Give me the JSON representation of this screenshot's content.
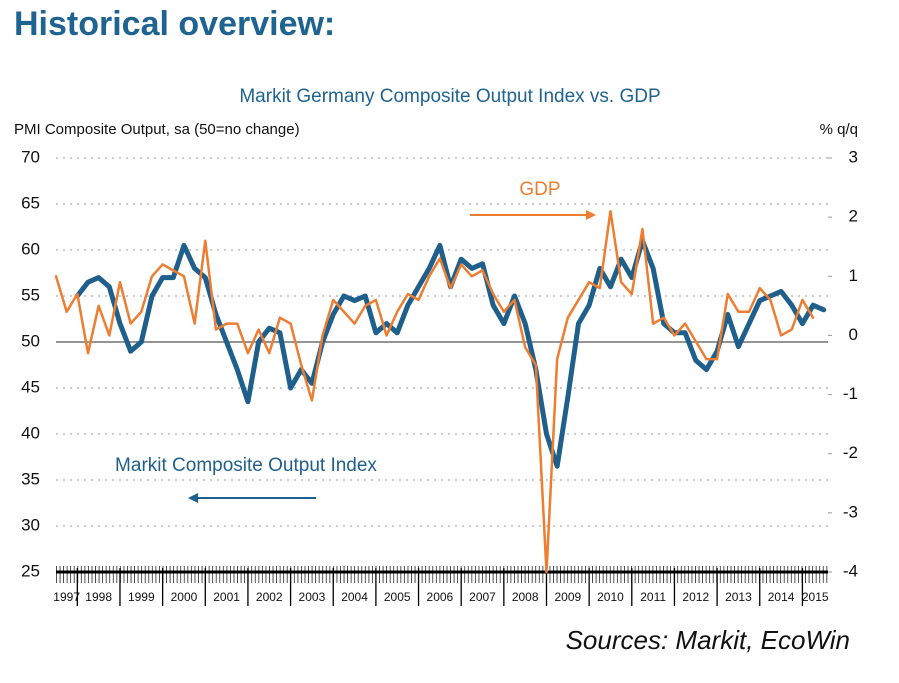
{
  "page_title": "Historical overview:",
  "chart_data": {
    "type": "line",
    "title": "Markit Germany Composite Output Index vs. GDP",
    "y_label": "PMI Composite Output, sa (50=no change)",
    "y2_label": "% q/q",
    "annotations": [
      "GDP",
      "Markit Composite Output Index"
    ],
    "source": "Sources: Markit, EcoWin",
    "xlim": [
      1997.5,
      2015.6
    ],
    "xticks": [
      1997,
      1998,
      1999,
      2000,
      2001,
      2002,
      2003,
      2004,
      2005,
      2006,
      2007,
      2008,
      2009,
      2010,
      2011,
      2012,
      2013,
      2014,
      2015
    ],
    "ylim": [
      25,
      70
    ],
    "yticks": [
      25,
      30,
      35,
      40,
      45,
      50,
      55,
      60,
      65,
      70
    ],
    "y2lim": [
      -4,
      3
    ],
    "y2ticks": [
      -4,
      -3,
      -2,
      -1,
      0,
      1,
      2,
      3
    ],
    "grid": true,
    "reference_line": 50,
    "series": [
      {
        "name": "Markit Composite Output Index",
        "color": "#1f5f8b",
        "width": 5,
        "x": [
          1998,
          1998.25,
          1998.5,
          1998.75,
          1999,
          1999.25,
          1999.5,
          1999.75,
          2000,
          2000.25,
          2000.5,
          2000.75,
          2001,
          2001.25,
          2001.5,
          2001.75,
          2002,
          2002.25,
          2002.5,
          2002.75,
          2003,
          2003.25,
          2003.5,
          2003.75,
          2004,
          2004.25,
          2004.5,
          2004.75,
          2005,
          2005.25,
          2005.5,
          2005.75,
          2006,
          2006.25,
          2006.5,
          2006.75,
          2007,
          2007.25,
          2007.5,
          2007.75,
          2008,
          2008.25,
          2008.5,
          2008.75,
          2009,
          2009.25,
          2009.5,
          2009.75,
          2010,
          2010.25,
          2010.5,
          2010.75,
          2011,
          2011.25,
          2011.5,
          2011.75,
          2012,
          2012.25,
          2012.5,
          2012.75,
          2013,
          2013.25,
          2013.5,
          2013.75,
          2014,
          2014.25,
          2014.5,
          2014.75,
          2015,
          2015.25,
          2015.5
        ],
        "values": [
          55,
          56.5,
          57,
          56,
          52,
          49,
          50,
          55,
          57,
          57,
          60.5,
          58,
          57,
          53,
          50,
          47,
          43.5,
          50,
          51.5,
          51,
          45,
          47,
          45.5,
          50,
          53,
          55,
          54.5,
          55,
          51,
          52,
          51,
          54,
          56,
          58,
          60.5,
          56,
          59,
          58,
          58.5,
          54,
          52,
          55,
          52,
          47,
          40,
          36.5,
          44,
          52,
          54,
          58,
          56,
          59,
          57,
          61,
          58,
          52,
          51,
          51,
          48,
          47,
          49,
          53,
          49.5,
          52,
          54.5,
          55,
          55.5,
          54,
          52,
          54,
          53.5
        ]
      },
      {
        "name": "GDP",
        "color": "#ed7d31",
        "width": 2.5,
        "axis": "y2",
        "x": [
          1997.5,
          1997.75,
          1998,
          1998.25,
          1998.5,
          1998.75,
          1999,
          1999.25,
          1999.5,
          1999.75,
          2000,
          2000.25,
          2000.5,
          2000.75,
          2001,
          2001.25,
          2001.5,
          2001.75,
          2002,
          2002.25,
          2002.5,
          2002.75,
          2003,
          2003.25,
          2003.5,
          2003.75,
          2004,
          2004.25,
          2004.5,
          2004.75,
          2005,
          2005.25,
          2005.5,
          2005.75,
          2006,
          2006.25,
          2006.5,
          2006.75,
          2007,
          2007.25,
          2007.5,
          2007.75,
          2008,
          2008.25,
          2008.5,
          2008.75,
          2009,
          2009.25,
          2009.5,
          2009.75,
          2010,
          2010.25,
          2010.5,
          2010.75,
          2011,
          2011.25,
          2011.5,
          2011.75,
          2012,
          2012.25,
          2012.5,
          2012.75,
          2013,
          2013.25,
          2013.5,
          2013.75,
          2014,
          2014.25,
          2014.5,
          2014.75,
          2015,
          2015.25
        ],
        "values": [
          1.0,
          0.4,
          0.7,
          -0.3,
          0.5,
          0.0,
          0.9,
          0.2,
          0.4,
          1.0,
          1.2,
          1.1,
          1.0,
          0.2,
          1.6,
          0.1,
          0.2,
          0.2,
          -0.3,
          0.1,
          -0.3,
          0.3,
          0.2,
          -0.5,
          -1.1,
          0.0,
          0.6,
          0.4,
          0.2,
          0.5,
          0.6,
          0.0,
          0.4,
          0.7,
          0.6,
          1.0,
          1.3,
          0.8,
          1.2,
          1.0,
          1.1,
          0.7,
          0.4,
          0.6,
          -0.2,
          -0.5,
          -4.0,
          -0.4,
          0.3,
          0.6,
          0.9,
          0.8,
          2.1,
          0.9,
          0.7,
          1.8,
          0.2,
          0.3,
          0.0,
          0.2,
          -0.1,
          -0.4,
          -0.4,
          0.7,
          0.4,
          0.4,
          0.8,
          0.6,
          0.0,
          0.1,
          0.6,
          0.3
        ]
      }
    ]
  }
}
